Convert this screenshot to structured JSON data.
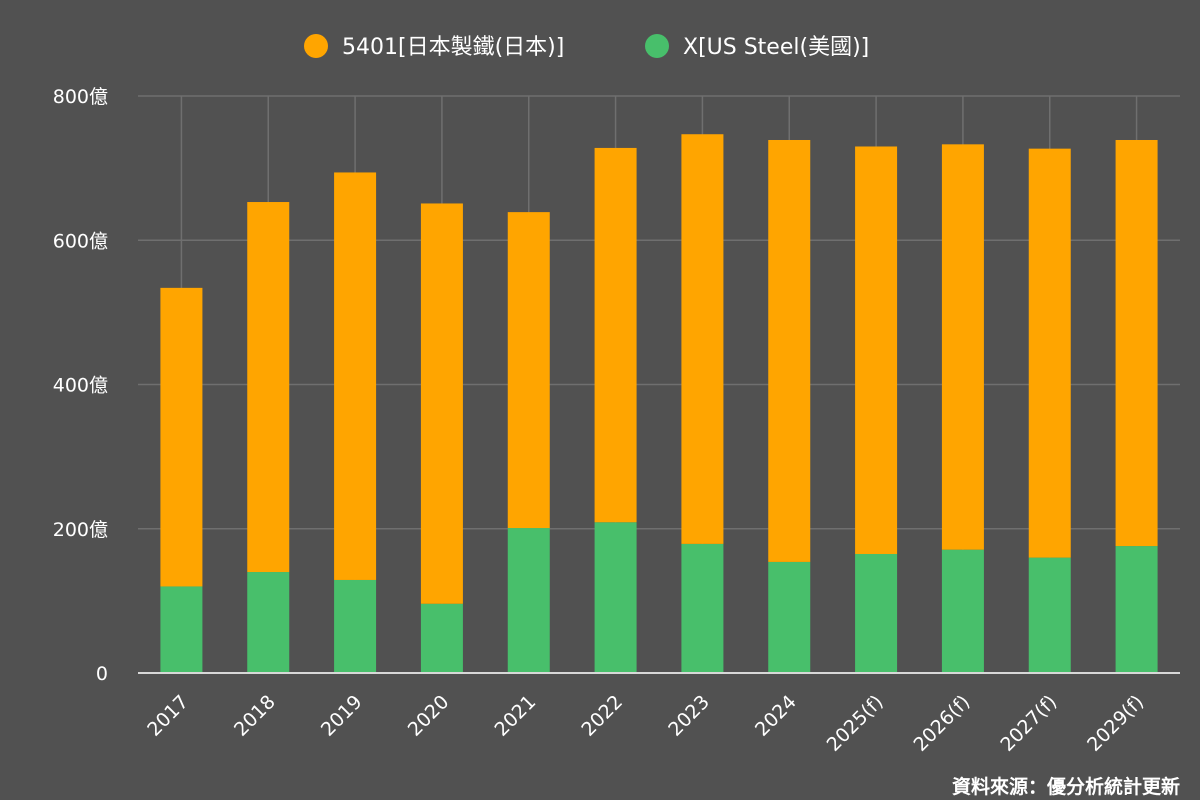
{
  "chart_data": {
    "type": "bar",
    "stacked": true,
    "categories": [
      "2017",
      "2018",
      "2019",
      "2020",
      "2021",
      "2022",
      "2023",
      "2024",
      "2025(f)",
      "2026(f)",
      "2027(f)",
      "2029(f)"
    ],
    "series": [
      {
        "name": "X[US Steel(美國)]",
        "color": "#48bf6b",
        "values": [
          120,
          140,
          129,
          96,
          201,
          209,
          179,
          154,
          165,
          171,
          160,
          176
        ]
      },
      {
        "name": "5401[日本製鐵(日本)]",
        "color": "#ffa500",
        "values": [
          414,
          513,
          565,
          555,
          438,
          519,
          568,
          585,
          565,
          562,
          567,
          563
        ]
      }
    ],
    "legend_order": [
      1,
      0
    ],
    "legend_position": "top-center",
    "yticks": [
      {
        "value": 0,
        "label": "0"
      },
      {
        "value": 200,
        "label": "200億"
      },
      {
        "value": 400,
        "label": "400億"
      },
      {
        "value": 600,
        "label": "600億"
      },
      {
        "value": 800,
        "label": "800億"
      }
    ],
    "ylim": [
      0,
      800
    ],
    "grid": true,
    "title": "",
    "xlabel": "",
    "ylabel": ""
  },
  "source_note": "資料來源：優分析統計更新"
}
